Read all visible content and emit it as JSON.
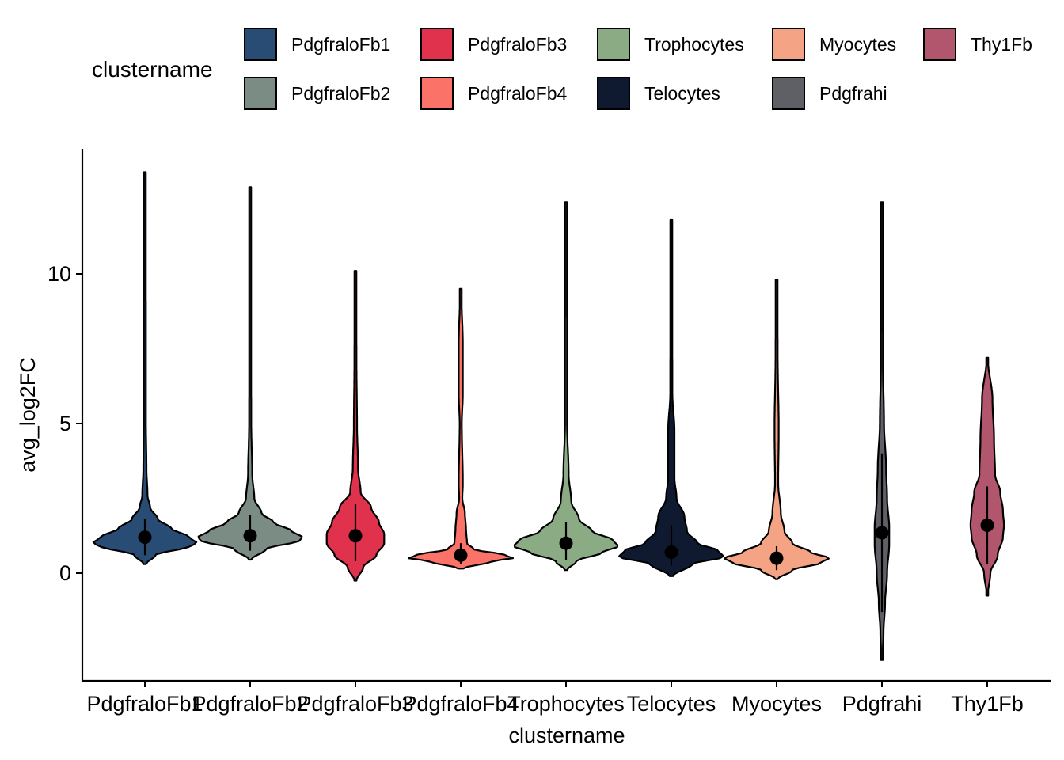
{
  "legend": {
    "title": "clustername",
    "items": [
      {
        "label": "PdgfraloFb1",
        "color": "#284c74"
      },
      {
        "label": "PdgfraloFb2",
        "color": "#7b8c85"
      },
      {
        "label": "PdgfraloFb3",
        "color": "#e0314d"
      },
      {
        "label": "PdgfraloFb4",
        "color": "#fb7268"
      },
      {
        "label": "Trophocytes",
        "color": "#8aab84"
      },
      {
        "label": "Telocytes",
        "color": "#0f1a30"
      },
      {
        "label": "Myocytes",
        "color": "#f4a384"
      },
      {
        "label": "Pdgfrahi",
        "color": "#5f5f66"
      },
      {
        "label": "Thy1Fb",
        "color": "#b2566e"
      }
    ]
  },
  "chart_data": {
    "type": "violin",
    "xlabel": "clustername",
    "ylabel": "avg_log2FC",
    "ylim": [
      -3.6,
      14.3
    ],
    "yticks": [
      0,
      5,
      10
    ],
    "legend_position": "top",
    "grid": false,
    "categories": [
      "PdgfraloFb1",
      "PdgfraloFb2",
      "PdgfraloFb3",
      "PdgfraloFb4",
      "Trophocytes",
      "Telocytes",
      "Myocytes",
      "Pdgfrahi",
      "Thy1Fb"
    ],
    "series": [
      {
        "min": 0.3,
        "max": 13.4,
        "mean": 1.2,
        "sd_low": 0.6,
        "sd_high": 1.8,
        "profile": [
          [
            0.3,
            0.02
          ],
          [
            0.6,
            0.2
          ],
          [
            0.9,
            0.85
          ],
          [
            1.0,
            1.0
          ],
          [
            1.2,
            0.85
          ],
          [
            1.5,
            0.5
          ],
          [
            1.8,
            0.25
          ],
          [
            2.2,
            0.1
          ],
          [
            2.6,
            0.05
          ],
          [
            3.5,
            0.03
          ],
          [
            5,
            0.02
          ],
          [
            8,
            0.02
          ],
          [
            13.4,
            0.01
          ]
        ]
      },
      {
        "min": 0.45,
        "max": 12.9,
        "mean": 1.25,
        "sd_low": 0.75,
        "sd_high": 1.95,
        "profile": [
          [
            0.45,
            0.02
          ],
          [
            0.8,
            0.3
          ],
          [
            1.1,
            0.95
          ],
          [
            1.2,
            1.0
          ],
          [
            1.4,
            0.8
          ],
          [
            1.7,
            0.45
          ],
          [
            2.0,
            0.22
          ],
          [
            2.5,
            0.08
          ],
          [
            3.3,
            0.04
          ],
          [
            5,
            0.02
          ],
          [
            8,
            0.015
          ],
          [
            12.9,
            0.01
          ]
        ]
      },
      {
        "min": -0.25,
        "max": 10.1,
        "mean": 1.25,
        "sd_low": 0.4,
        "sd_high": 2.3,
        "profile": [
          [
            -0.25,
            0.02
          ],
          [
            0.2,
            0.15
          ],
          [
            0.6,
            0.4
          ],
          [
            1.0,
            0.55
          ],
          [
            1.3,
            0.55
          ],
          [
            1.7,
            0.45
          ],
          [
            2.2,
            0.3
          ],
          [
            2.7,
            0.1
          ],
          [
            3.5,
            0.05
          ],
          [
            5,
            0.03
          ],
          [
            7,
            0.02
          ],
          [
            10.1,
            0.01
          ]
        ]
      },
      {
        "min": 0.15,
        "max": 9.5,
        "mean": 0.6,
        "sd_low": 0.3,
        "sd_high": 1.0,
        "profile": [
          [
            0.15,
            0.05
          ],
          [
            0.4,
            0.6
          ],
          [
            0.5,
            1.0
          ],
          [
            0.6,
            0.85
          ],
          [
            0.8,
            0.25
          ],
          [
            1.0,
            0.12
          ],
          [
            1.5,
            0.1
          ],
          [
            2.0,
            0.08
          ],
          [
            2.5,
            0.03
          ],
          [
            3,
            0.04
          ],
          [
            5,
            0.02
          ],
          [
            6,
            0.04
          ],
          [
            7.6,
            0.04
          ],
          [
            9.5,
            0.01
          ]
        ]
      },
      {
        "min": 0.1,
        "max": 12.4,
        "mean": 1.0,
        "sd_low": 0.45,
        "sd_high": 1.7,
        "profile": [
          [
            0.1,
            0.02
          ],
          [
            0.4,
            0.2
          ],
          [
            0.7,
            0.7
          ],
          [
            0.9,
            1.0
          ],
          [
            1.1,
            0.9
          ],
          [
            1.4,
            0.5
          ],
          [
            1.8,
            0.25
          ],
          [
            2.4,
            0.1
          ],
          [
            3.3,
            0.05
          ],
          [
            5,
            0.02
          ],
          [
            7.5,
            0.02
          ],
          [
            12.4,
            0.01
          ]
        ]
      },
      {
        "min": -0.1,
        "max": 11.8,
        "mean": 0.7,
        "sd_low": 0.25,
        "sd_high": 1.6,
        "profile": [
          [
            -0.1,
            0.03
          ],
          [
            0.3,
            0.4
          ],
          [
            0.55,
            1.0
          ],
          [
            0.75,
            0.9
          ],
          [
            1.0,
            0.5
          ],
          [
            1.4,
            0.3
          ],
          [
            1.9,
            0.25
          ],
          [
            2.5,
            0.1
          ],
          [
            3.2,
            0.06
          ],
          [
            4.8,
            0.06
          ],
          [
            6,
            0.02
          ],
          [
            11.8,
            0.01
          ]
        ]
      },
      {
        "min": -0.2,
        "max": 9.8,
        "mean": 0.5,
        "sd_low": 0.1,
        "sd_high": 0.9,
        "profile": [
          [
            -0.2,
            0.02
          ],
          [
            0.1,
            0.3
          ],
          [
            0.35,
            0.85
          ],
          [
            0.5,
            1.0
          ],
          [
            0.7,
            0.65
          ],
          [
            1.0,
            0.3
          ],
          [
            1.4,
            0.15
          ],
          [
            2.0,
            0.08
          ],
          [
            3,
            0.03
          ],
          [
            4.8,
            0.04
          ],
          [
            7.3,
            0.02
          ],
          [
            9.8,
            0.01
          ]
        ]
      },
      {
        "min": -2.9,
        "max": 12.4,
        "mean": 1.35,
        "sd_low": -1.3,
        "sd_high": 4.0,
        "profile": [
          [
            -2.9,
            0.01
          ],
          [
            -2,
            0.03
          ],
          [
            -1,
            0.06
          ],
          [
            0,
            0.1
          ],
          [
            1,
            0.14
          ],
          [
            1.5,
            0.14
          ],
          [
            2.5,
            0.1
          ],
          [
            3.5,
            0.08
          ],
          [
            5,
            0.04
          ],
          [
            7,
            0.02
          ],
          [
            12.4,
            0.01
          ]
        ]
      },
      {
        "min": -0.75,
        "max": 7.2,
        "mean": 1.6,
        "sd_low": 0.3,
        "sd_high": 2.9,
        "profile": [
          [
            -0.75,
            0.01
          ],
          [
            0,
            0.06
          ],
          [
            0.6,
            0.2
          ],
          [
            1.2,
            0.3
          ],
          [
            1.6,
            0.32
          ],
          [
            2.1,
            0.3
          ],
          [
            2.7,
            0.25
          ],
          [
            3.3,
            0.15
          ],
          [
            4.5,
            0.13
          ],
          [
            5.8,
            0.1
          ],
          [
            7.2,
            0.01
          ]
        ]
      }
    ]
  }
}
